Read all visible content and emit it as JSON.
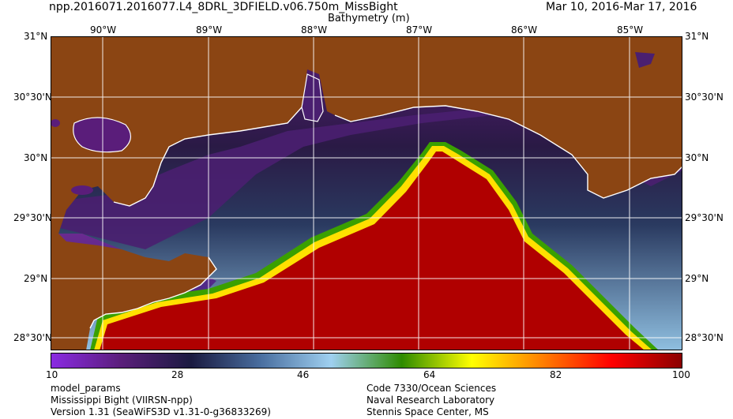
{
  "header": {
    "product_name": "npp.2016071.2016077.L4_8DRL_3DFIELD.v06.750m_MissBight",
    "date_range": "Mar 10, 2016-Mar 17, 2016",
    "parameter_title": "Bathymetry (m)"
  },
  "map": {
    "region": "Mississippi Bight",
    "top_ticks": [
      "90°W",
      "89°W",
      "88°W",
      "87°W",
      "86°W",
      "85°W"
    ],
    "lat_ticks": [
      "31°N",
      "30°30'N",
      "30°N",
      "29°30'N",
      "29°N",
      "28°30'N"
    ],
    "colors": {
      "land": "#8b4513",
      "coastline": "#ffffff",
      "grid": "#ffffff",
      "deep": "#b00000"
    }
  },
  "colorbar": {
    "min": 10,
    "max": 100,
    "tick_labels": [
      "10",
      "28",
      "46",
      "64",
      "82",
      "100"
    ],
    "colors": [
      "#8a2be2",
      "#5a1e7a",
      "#1a1a40",
      "#4a6fa0",
      "#9fd0f0",
      "#2e8b00",
      "#ffff00",
      "#ff8000",
      "#ff0000",
      "#8b0000"
    ]
  },
  "footer": {
    "left": [
      "model_params",
      "Mississippi Bight (VIIRSN-npp)",
      "Version 1.31 (SeaWiFS3D v1.31-0-g36833269)"
    ],
    "right": [
      "Code 7330/Ocean Sciences",
      "Naval Research Laboratory",
      "Stennis Space Center, MS"
    ]
  }
}
